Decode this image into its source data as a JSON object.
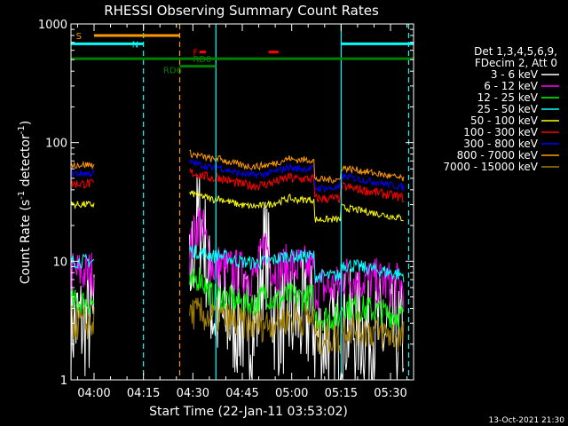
{
  "chart_data": {
    "type": "line",
    "title": "RHESSI Observing Summary Count Rates",
    "xlabel": "Start Time (22-Jan-11 03:53:02)",
    "ylabel_main": "Count Rate (s",
    "ylabel_sup1": "-1",
    "ylabel_mid": " detector",
    "ylabel_sup2": "-1",
    "ylabel_end": ")",
    "yscale": "log",
    "ylim": [
      1,
      1000
    ],
    "xlim_min": [
      233,
      337
    ],
    "y_ticks": [
      {
        "v": 1,
        "label": "1"
      },
      {
        "v": 10,
        "label": "10"
      },
      {
        "v": 100,
        "label": "100"
      },
      {
        "v": 1000,
        "label": "1000"
      }
    ],
    "x_ticks": [
      {
        "v": 240,
        "label": "04:00"
      },
      {
        "v": 255,
        "label": "04:15"
      },
      {
        "v": 270,
        "label": "04:30"
      },
      {
        "v": 285,
        "label": "04:45"
      },
      {
        "v": 300,
        "label": "05:00"
      },
      {
        "v": 315,
        "label": "05:15"
      },
      {
        "v": 330,
        "label": "05:30"
      }
    ],
    "legend_header": [
      "Det 1,3,4,5,6,9,",
      "FDecim 2, Att 0"
    ],
    "legend_placement": "right",
    "series": [
      {
        "name": "3 - 6 keV",
        "color": "#ffffff",
        "base": 3.0,
        "noise": 0.5,
        "flare": 18
      },
      {
        "name": "6 - 12 keV",
        "color": "#ff00ff",
        "base": 8.0,
        "noise": 0.2,
        "flare": 12
      },
      {
        "name": "12 - 25 keV",
        "color": "#00ff00",
        "base": 4.5,
        "noise": 0.12,
        "flare": 2
      },
      {
        "name": "25 - 50 keV",
        "color": "#00ffff",
        "base": 10.0,
        "noise": 0.06,
        "flare": 0
      },
      {
        "name": "50 - 100 keV",
        "color": "#ffff00",
        "base": 30.0,
        "noise": 0.03,
        "flare": 0
      },
      {
        "name": "100 - 300 keV",
        "color": "#ff0000",
        "base": 45.0,
        "noise": 0.04,
        "flare": 0
      },
      {
        "name": "300 - 800 keV",
        "color": "#0000ff",
        "base": 55.0,
        "noise": 0.03,
        "flare": 0
      },
      {
        "name": "800 - 7000 keV",
        "color": "#ff9900",
        "base": 65.0,
        "noise": 0.03,
        "flare": 0
      },
      {
        "name": "7000 - 15000 keV",
        "color": "#a08000",
        "base": 3.0,
        "noise": 0.15,
        "flare": 0
      }
    ],
    "data_segments": [
      [
        233,
        240
      ],
      [
        269,
        334
      ]
    ],
    "markers": [
      {
        "label": "S",
        "color": "#ff9900",
        "t0": 240,
        "t1": 266,
        "y": 800,
        "label_t": 234.5
      },
      {
        "label": "N",
        "color": "#00ffff",
        "t0": 233,
        "t1": 255,
        "y": 680,
        "label_t": 251.5
      },
      {
        "label": "N",
        "color": "#00ffff",
        "t0": 315,
        "t1": 337,
        "y": 680,
        "label_t": null
      },
      {
        "label": "F",
        "color": "#ff0000",
        "t0": 272,
        "t1": 274,
        "y": 580,
        "label_t": 270
      },
      {
        "label": "",
        "color": "#ff0000",
        "t0": 293,
        "t1": 296,
        "y": 580,
        "label_t": null
      },
      {
        "label": "RD0",
        "color": "#008000",
        "t0": 233,
        "t1": 337,
        "y": 510,
        "label_t": 270
      },
      {
        "label": "RD6",
        "color": "#008000",
        "t0": 266,
        "t1": 277,
        "y": 440,
        "label_t": 261
      }
    ],
    "vlines": [
      {
        "t": 255,
        "color": "#00ffff",
        "dash": true
      },
      {
        "t": 266,
        "color": "#ff9900",
        "dash": true
      },
      {
        "t": 335.5,
        "color": "#00ffff",
        "dash": true
      },
      {
        "t": 277,
        "color": "#00ffff",
        "dash": false
      },
      {
        "t": 315,
        "color": "#00ffff",
        "dash": false
      }
    ]
  },
  "footer_date": "13-Oct-2021 21:30"
}
